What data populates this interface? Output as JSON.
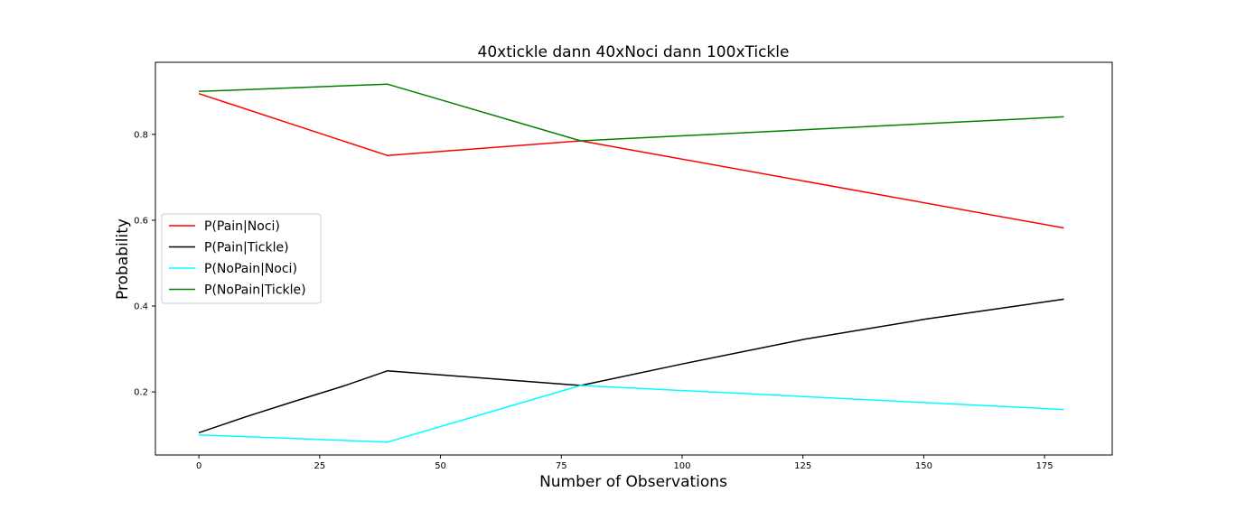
{
  "chart_data": {
    "type": "line",
    "title": "40xtickle dann 40xNoci dann 100xTickle",
    "xlabel": "Number of Observations",
    "ylabel": "Probability",
    "xlim": [
      -9,
      189
    ],
    "ylim": [
      0.053,
      0.968
    ],
    "xticks": [
      0,
      25,
      50,
      75,
      100,
      125,
      150,
      175
    ],
    "yticks": [
      0.2,
      0.4,
      0.6,
      0.8
    ],
    "xtick_labels": [
      "0",
      "25",
      "50",
      "75",
      "100",
      "125",
      "150",
      "175"
    ],
    "ytick_labels": [
      "0.2",
      "0.4",
      "0.6",
      "0.8"
    ],
    "grid": false,
    "legend_position": "center-left",
    "series": [
      {
        "name": "P(Pain|Noci)",
        "color": "#ff0000",
        "x": [
          0,
          39,
          79,
          179
        ],
        "y": [
          0.895,
          0.751,
          0.785,
          0.582
        ]
      },
      {
        "name": "P(Pain|Tickle)",
        "color": "#000000",
        "x": [
          0,
          10,
          20,
          30,
          39,
          79,
          100,
          125,
          150,
          179
        ],
        "y": [
          0.105,
          0.143,
          0.179,
          0.214,
          0.249,
          0.215,
          0.265,
          0.322,
          0.369,
          0.416
        ]
      },
      {
        "name": "P(NoPain|Noci)",
        "color": "#00ffff",
        "x": [
          0,
          39,
          79,
          179
        ],
        "y": [
          0.1,
          0.083,
          0.215,
          0.159
        ]
      },
      {
        "name": "P(NoPain|Tickle)",
        "color": "#008000",
        "x": [
          0,
          39,
          79,
          179
        ],
        "y": [
          0.9,
          0.917,
          0.785,
          0.841
        ]
      }
    ]
  }
}
